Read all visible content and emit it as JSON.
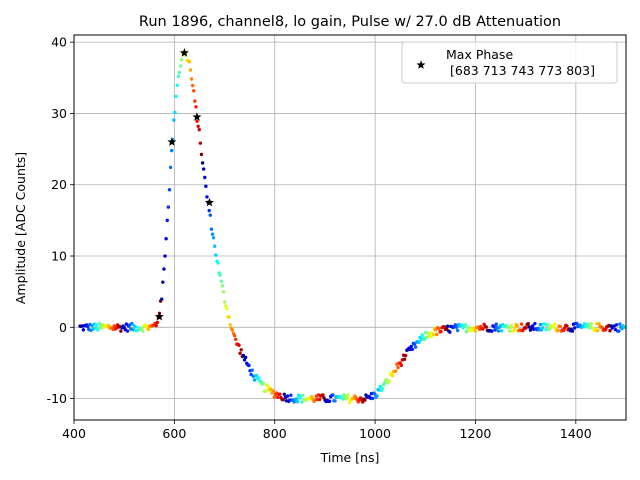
{
  "chart_data": {
    "type": "scatter",
    "title": "Run 1896, channel8, lo gain, Pulse w/ 27.0 dB Attenuation",
    "xlabel": "Time [ns]",
    "ylabel": "Amplitude [ADC Counts]",
    "xlim": [
      400,
      1500
    ],
    "ylim": [
      -13,
      41
    ],
    "xticks": [
      400,
      600,
      800,
      1000,
      1200,
      1400
    ],
    "yticks": [
      -10,
      0,
      10,
      20,
      30,
      40
    ],
    "grid": true,
    "colormap": "jet",
    "legend": {
      "placement": "top-right",
      "label": "Max Phase",
      "label_line2": "[683 713 743 773 803]"
    },
    "pulse_curve": {
      "x": [
        400,
        555,
        565,
        575,
        585,
        595,
        605,
        615,
        622,
        630,
        640,
        650,
        660,
        670,
        680,
        690,
        700,
        710,
        720,
        740,
        760,
        780,
        800,
        820,
        850,
        900,
        950,
        980,
        1000,
        1020,
        1040,
        1060,
        1080,
        1100,
        1120,
        1150,
        1200,
        1300,
        1500
      ],
      "y": [
        0,
        0,
        0.5,
        4,
        14,
        25,
        34,
        38,
        38.5,
        37,
        32,
        27,
        21,
        16,
        11.5,
        7.5,
        4,
        1,
        -1.5,
        -4.5,
        -7,
        -8.5,
        -9.3,
        -9.8,
        -10,
        -10,
        -10,
        -10,
        -9.5,
        -8,
        -6,
        -4,
        -2.5,
        -1.2,
        -0.6,
        -0.2,
        0,
        0,
        0
      ]
    },
    "series": [
      {
        "name": "Max Phase",
        "marker": "star",
        "x": [
          570,
          595,
          620,
          645,
          670
        ],
        "y": [
          1.5,
          26,
          38.5,
          29.5,
          17.5
        ]
      }
    ],
    "colors": {
      "star": "#000000",
      "grid": "#b0b0b0",
      "axes": "#000000"
    }
  }
}
